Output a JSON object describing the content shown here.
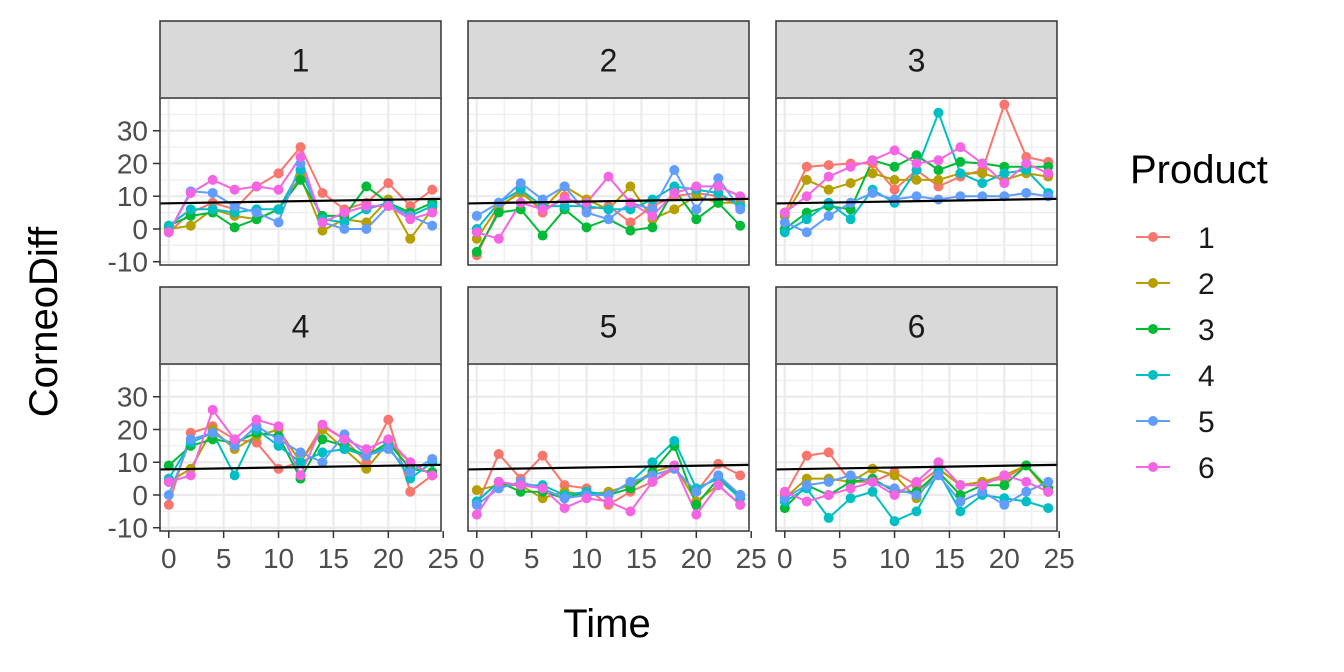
{
  "chart_data": {
    "type": "line",
    "xlabel": "Time",
    "ylabel": "CorneoDiff",
    "x": [
      0,
      2,
      4,
      6,
      8,
      10,
      12,
      14,
      16,
      18,
      20,
      22,
      24
    ],
    "xlim": [
      -0.8,
      24.8
    ],
    "ylim": [
      -11,
      40
    ],
    "xticks": [
      0,
      5,
      10,
      15,
      20,
      25
    ],
    "yticks": [
      -10,
      0,
      10,
      20,
      30
    ],
    "xtick_labels": [
      "0",
      "5",
      "10",
      "15",
      "20",
      "25"
    ],
    "ytick_labels": [
      "-10",
      "0",
      "10",
      "20",
      "30"
    ],
    "grid": true,
    "legend": {
      "title": "Product",
      "position": "right",
      "items": [
        "1",
        "2",
        "3",
        "4",
        "5",
        "6"
      ]
    },
    "colors": [
      "#F8766D",
      "#B79F00",
      "#00BA38",
      "#00BFC4",
      "#619CFF",
      "#F564E3"
    ],
    "trend_line_color": "#000000",
    "panels": [
      {
        "label": "1",
        "trend": [
          [
            -0.8,
            7.8
          ],
          [
            24.8,
            9.2
          ]
        ],
        "series": [
          {
            "name": "1",
            "values": [
              -1,
              5,
              8,
              6,
              13,
              17,
              25,
              11,
              6,
              8,
              14,
              7,
              12
            ]
          },
          {
            "name": "2",
            "values": [
              0,
              1,
              6,
              4,
              3,
              6,
              16,
              -0.5,
              3,
              2,
              9,
              -3,
              6
            ]
          },
          {
            "name": "3",
            "values": [
              1,
              4,
              5,
              0.5,
              3,
              6,
              15,
              4,
              4,
              13,
              8,
              5,
              8
            ]
          },
          {
            "name": "4",
            "values": [
              1,
              6,
              6,
              5,
              6,
              6,
              18,
              3,
              2,
              6,
              8,
              4,
              7
            ]
          },
          {
            "name": "5",
            "values": [
              -1,
              11.5,
              11,
              7,
              5,
              2,
              20,
              2,
              0,
              0,
              7,
              4,
              1
            ]
          },
          {
            "name": "6",
            "values": [
              -1,
              11,
              15,
              12,
              13,
              12,
              22,
              2,
              5,
              7,
              7,
              3,
              5
            ]
          }
        ]
      },
      {
        "label": "2",
        "trend": [
          [
            -0.8,
            7.8
          ],
          [
            24.8,
            9.2
          ]
        ],
        "series": [
          {
            "name": "1",
            "values": [
              -8,
              6,
              12,
              5,
              10,
              6,
              7,
              2,
              7,
              10,
              11,
              10,
              7
            ]
          },
          {
            "name": "2",
            "values": [
              -3,
              7,
              11,
              6,
              13,
              9,
              6,
              13,
              3,
              6,
              10,
              8,
              8
            ]
          },
          {
            "name": "3",
            "values": [
              -7,
              5,
              6,
              -2,
              6,
              0.5,
              3,
              -0.5,
              0.5,
              12,
              3,
              8,
              1
            ]
          },
          {
            "name": "4",
            "values": [
              0,
              8,
              12,
              7,
              7,
              7,
              6,
              6,
              9,
              13,
              12,
              11,
              7
            ]
          },
          {
            "name": "5",
            "values": [
              4,
              8,
              14,
              9,
              13,
              5,
              3,
              8,
              6,
              18,
              6,
              15.5,
              6
            ]
          },
          {
            "name": "6",
            "values": [
              -1,
              -3,
              8,
              6,
              9,
              8,
              16,
              8,
              4,
              11,
              13,
              13,
              10
            ]
          }
        ]
      },
      {
        "label": "3",
        "trend": [
          [
            -0.8,
            7.8
          ],
          [
            24.8,
            9.2
          ]
        ],
        "series": [
          {
            "name": "1",
            "values": [
              5,
              19,
              19.5,
              20,
              20,
              12,
              18,
              13,
              16,
              18,
              38,
              22,
              20.5
            ]
          },
          {
            "name": "2",
            "values": [
              4,
              15,
              12,
              14,
              17,
              15,
              15,
              15,
              17,
              17,
              15,
              17,
              16
            ]
          },
          {
            "name": "3",
            "values": [
              0,
              5,
              7,
              6,
              21,
              19,
              22.5,
              18,
              20.5,
              20,
              19,
              19,
              19
            ]
          },
          {
            "name": "4",
            "values": [
              -1,
              3,
              8,
              3,
              12,
              8,
              18,
              35.5,
              17,
              14,
              17,
              18,
              11
            ]
          },
          {
            "name": "5",
            "values": [
              2,
              -1,
              4,
              8,
              11,
              9,
              10,
              9,
              10,
              10,
              10,
              11,
              10
            ]
          },
          {
            "name": "6",
            "values": [
              5,
              10,
              16,
              19,
              21,
              24,
              20,
              21,
              25,
              20,
              14,
              20,
              17
            ]
          }
        ]
      },
      {
        "label": "4",
        "trend": [
          [
            -0.8,
            7.8
          ],
          [
            24.8,
            9.2
          ]
        ],
        "series": [
          {
            "name": "1",
            "values": [
              -3,
              19,
              21,
              17,
              16,
              8,
              10,
              21,
              17,
              10,
              23,
              1,
              6
            ]
          },
          {
            "name": "2",
            "values": [
              4,
              8,
              20,
              14,
              18,
              20,
              10,
              20,
              14,
              8,
              16,
              10,
              6
            ]
          },
          {
            "name": "3",
            "values": [
              9,
              15,
              17,
              16,
              19,
              18,
              5,
              17,
              15,
              12,
              16,
              8,
              7
            ]
          },
          {
            "name": "4",
            "values": [
              5,
              16,
              19,
              6,
              20,
              15,
              10,
              13,
              14,
              12,
              15,
              5,
              10
            ]
          },
          {
            "name": "5",
            "values": [
              0,
              17,
              19,
              15,
              21,
              17,
              13,
              10,
              18.5,
              12,
              14,
              7,
              11
            ]
          },
          {
            "name": "6",
            "values": [
              4,
              6,
              26,
              17,
              23,
              21,
              6,
              21.5,
              17,
              14,
              17,
              10,
              6
            ]
          }
        ]
      },
      {
        "label": "5",
        "trend": [
          [
            -0.8,
            7.8
          ],
          [
            24.8,
            9.2
          ]
        ],
        "series": [
          {
            "name": "1",
            "values": [
              -3,
              12.5,
              5,
              12,
              3,
              2,
              -3,
              1,
              4,
              8,
              1,
              9.5,
              6
            ]
          },
          {
            "name": "2",
            "values": [
              1.5,
              3,
              3,
              -1,
              1,
              0,
              1,
              3,
              7,
              9,
              -2,
              3,
              -3
            ]
          },
          {
            "name": "3",
            "values": [
              -2,
              4,
              1,
              1,
              -1,
              1,
              0,
              2,
              7,
              15,
              -3,
              5,
              0
            ]
          },
          {
            "name": "4",
            "values": [
              -2,
              4,
              3,
              3,
              0,
              1,
              0,
              4,
              10,
              16.5,
              2,
              5,
              -1
            ]
          },
          {
            "name": "5",
            "values": [
              -3,
              2,
              4,
              2,
              -1,
              0,
              0,
              4,
              6,
              8,
              1,
              6,
              0
            ]
          },
          {
            "name": "6",
            "values": [
              -6,
              4,
              3,
              2,
              -4,
              -1,
              -2,
              -5,
              4,
              9,
              -6,
              3,
              -3
            ]
          }
        ]
      },
      {
        "label": "6",
        "trend": [
          [
            -0.8,
            7.8
          ],
          [
            24.8,
            9.2
          ]
        ],
        "series": [
          {
            "name": "1",
            "values": [
              0,
              12,
              13,
              4,
              4,
              7,
              3,
              8,
              3,
              4,
              5,
              9,
              1
            ]
          },
          {
            "name": "2",
            "values": [
              -1,
              5,
              5,
              4,
              8,
              6,
              -1,
              8,
              3,
              4,
              6,
              9,
              1
            ]
          },
          {
            "name": "3",
            "values": [
              -4,
              3,
              0,
              4,
              5,
              1,
              1,
              7,
              0,
              3,
              3,
              9,
              2
            ]
          },
          {
            "name": "4",
            "values": [
              -2,
              2,
              -7,
              -1,
              1,
              -8,
              -5,
              7,
              -5,
              0,
              -1,
              -2,
              -4
            ]
          },
          {
            "name": "5",
            "values": [
              -1,
              3,
              4,
              6,
              4,
              2,
              0,
              6,
              -2,
              1,
              -3,
              1,
              4
            ]
          },
          {
            "name": "6",
            "values": [
              1,
              -2,
              0,
              2,
              4,
              0,
              4,
              10,
              3,
              3,
              6,
              4,
              1
            ]
          }
        ]
      }
    ]
  }
}
